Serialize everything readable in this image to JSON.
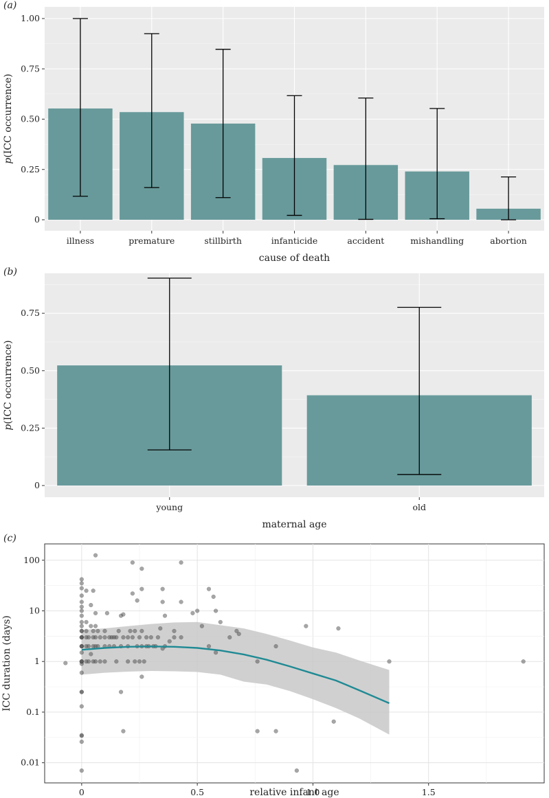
{
  "chart_data": [
    {
      "panel": "(a)",
      "panel_letter": "a",
      "type": "bar",
      "xlabel": "cause of death",
      "ylabel_italic": "p",
      "ylabel_rest": "(ICC occurrence)",
      "ylim": [
        0,
        1.0
      ],
      "yticks": [
        0,
        0.25,
        0.5,
        0.75,
        1.0
      ],
      "ytick_labels": [
        "0",
        "0.25",
        "0.50",
        "0.75",
        "1.00"
      ],
      "categories": [
        "illness",
        "premature",
        "stillbirth",
        "infanticide",
        "accident",
        "mishandling",
        "abortion"
      ],
      "values": [
        0.553,
        0.535,
        0.478,
        0.307,
        0.272,
        0.24,
        0.055
      ],
      "lower": [
        0.117,
        0.16,
        0.11,
        0.022,
        0.002,
        0.005,
        0.0
      ],
      "upper": [
        1.0,
        0.925,
        0.847,
        0.617,
        0.605,
        0.553,
        0.213
      ],
      "bar_color": "#689a9b"
    },
    {
      "panel": "(b)",
      "panel_letter": "b",
      "type": "bar",
      "xlabel": "maternal age",
      "ylabel_italic": "p",
      "ylabel_rest": "(ICC occurrence)",
      "ylim": [
        0,
        0.9
      ],
      "yticks": [
        0,
        0.25,
        0.5,
        0.75
      ],
      "ytick_labels": [
        "0",
        "0.25",
        "0.50",
        "0.75"
      ],
      "categories": [
        "young",
        "old"
      ],
      "values": [
        0.523,
        0.393
      ],
      "lower": [
        0.155,
        0.048
      ],
      "upper": [
        0.903,
        0.776
      ],
      "bar_color": "#689a9b"
    },
    {
      "panel": "(c)",
      "panel_letter": "c",
      "type": "scatter",
      "xlabel": "relative infant age",
      "ylabel": "ICC duration (days)",
      "y_scale": "log10",
      "xlim": [
        -0.16,
        2.0
      ],
      "ylim": [
        0.004,
        210
      ],
      "xticks": [
        0,
        0.5,
        1.0,
        1.5
      ],
      "xtick_labels": [
        "0",
        "0.5",
        "1.0",
        "1.5"
      ],
      "yticks": [
        0.01,
        0.1,
        1,
        10,
        100
      ],
      "ytick_labels": [
        "0.01",
        "0.1",
        "1",
        "10",
        "100"
      ],
      "points": [
        [
          0,
          0.007
        ],
        [
          0,
          0.026
        ],
        [
          0,
          0.034
        ],
        [
          0,
          0.035
        ],
        [
          0,
          0.13
        ],
        [
          0,
          0.25
        ],
        [
          0,
          0.25
        ],
        [
          0,
          0.6
        ],
        [
          0,
          0.9
        ],
        [
          0,
          1
        ],
        [
          0,
          1
        ],
        [
          0,
          1
        ],
        [
          0,
          1.5
        ],
        [
          0,
          2
        ],
        [
          0,
          2
        ],
        [
          0,
          2
        ],
        [
          0,
          3
        ],
        [
          0,
          3
        ],
        [
          0,
          3
        ],
        [
          0,
          4
        ],
        [
          0,
          4
        ],
        [
          0,
          5
        ],
        [
          0,
          6
        ],
        [
          0,
          8
        ],
        [
          0,
          10
        ],
        [
          0,
          12
        ],
        [
          0,
          15
        ],
        [
          0,
          20
        ],
        [
          0,
          28
        ],
        [
          0,
          35
        ],
        [
          0,
          42
        ],
        [
          0.02,
          1
        ],
        [
          0.02,
          2
        ],
        [
          0.02,
          3
        ],
        [
          0.02,
          4
        ],
        [
          0.02,
          6
        ],
        [
          0.02,
          25
        ],
        [
          0.03,
          1
        ],
        [
          0.03,
          2
        ],
        [
          0.03,
          3
        ],
        [
          0.04,
          1.4
        ],
        [
          0.04,
          5
        ],
        [
          0.04,
          13
        ],
        [
          0.05,
          1
        ],
        [
          0.05,
          2
        ],
        [
          0.05,
          3
        ],
        [
          0.05,
          4
        ],
        [
          0.05,
          25
        ],
        [
          0.06,
          1
        ],
        [
          0.06,
          2
        ],
        [
          0.06,
          3
        ],
        [
          0.06,
          5
        ],
        [
          0.06,
          9
        ],
        [
          0.07,
          2
        ],
        [
          0.07,
          4
        ],
        [
          0.08,
          1
        ],
        [
          0.08,
          3
        ],
        [
          0.1,
          1
        ],
        [
          0.1,
          2
        ],
        [
          0.1,
          3
        ],
        [
          0.1,
          4
        ],
        [
          0.11,
          9
        ],
        [
          0.12,
          2
        ],
        [
          0.12,
          3
        ],
        [
          0.13,
          3
        ],
        [
          0.14,
          2
        ],
        [
          0.14,
          3
        ],
        [
          0.15,
          1
        ],
        [
          0.15,
          3
        ],
        [
          0.16,
          4
        ],
        [
          0.17,
          2
        ],
        [
          0.17,
          8
        ],
        [
          0.18,
          3
        ],
        [
          0.18,
          8.5
        ],
        [
          0.2,
          1
        ],
        [
          0.2,
          2
        ],
        [
          0.2,
          3
        ],
        [
          0.21,
          4
        ],
        [
          0.22,
          3
        ],
        [
          0.23,
          1
        ],
        [
          0.23,
          4
        ],
        [
          0.24,
          2
        ],
        [
          0.25,
          1
        ],
        [
          0.25,
          3
        ],
        [
          0.26,
          2
        ],
        [
          0.26,
          4
        ],
        [
          0.27,
          1
        ],
        [
          0.28,
          2
        ],
        [
          0.28,
          3
        ],
        [
          0.29,
          2
        ],
        [
          0.3,
          3
        ],
        [
          0.31,
          2
        ],
        [
          0.32,
          2
        ],
        [
          0.33,
          3
        ],
        [
          0.34,
          4.5
        ],
        [
          0.35,
          1.8
        ],
        [
          0.36,
          2
        ],
        [
          0.38,
          2.5
        ],
        [
          0.4,
          3
        ],
        [
          0.4,
          4
        ],
        [
          0.22,
          22
        ],
        [
          0.24,
          16
        ],
        [
          0.26,
          27
        ],
        [
          0.35,
          27
        ],
        [
          0.35,
          15
        ],
        [
          0.36,
          8
        ],
        [
          0.43,
          15
        ],
        [
          0.43,
          3
        ],
        [
          0.5,
          10
        ],
        [
          0.48,
          9
        ],
        [
          0.52,
          5
        ],
        [
          0.55,
          2
        ],
        [
          0.55,
          27
        ],
        [
          0.57,
          19
        ],
        [
          0.58,
          1.5
        ],
        [
          0.58,
          10
        ],
        [
          0.6,
          6
        ],
        [
          0.64,
          3
        ],
        [
          0.67,
          4
        ],
        [
          0.68,
          3.5
        ],
        [
          0.76,
          1
        ],
        [
          0.84,
          2
        ],
        [
          0.97,
          5
        ],
        [
          1.11,
          4.5
        ],
        [
          1.33,
          1
        ],
        [
          -0.07,
          0.93
        ],
        [
          0.06,
          125
        ],
        [
          0.22,
          90
        ],
        [
          0.26,
          68
        ],
        [
          0.43,
          90
        ],
        [
          0.17,
          0.25
        ],
        [
          0.18,
          0.042
        ],
        [
          0.26,
          0.5
        ],
        [
          0.76,
          0.042
        ],
        [
          0.84,
          0.042
        ],
        [
          0.93,
          0.007
        ],
        [
          1.09,
          0.065
        ],
        [
          1.91,
          1
        ]
      ],
      "fit_x": [
        0,
        0.1,
        0.2,
        0.3,
        0.4,
        0.5,
        0.6,
        0.7,
        0.8,
        0.9,
        1.0,
        1.1,
        1.2,
        1.33
      ],
      "fit_y": [
        1.7,
        1.85,
        1.95,
        1.98,
        1.95,
        1.85,
        1.65,
        1.38,
        1.08,
        0.8,
        0.58,
        0.42,
        0.27,
        0.15
      ],
      "fit_lo": [
        0.55,
        0.6,
        0.63,
        0.65,
        0.64,
        0.62,
        0.55,
        0.4,
        0.35,
        0.26,
        0.18,
        0.12,
        0.075,
        0.036
      ],
      "fit_hi": [
        4.2,
        4.5,
        5.0,
        5.5,
        5.9,
        6.0,
        5.2,
        4.5,
        3.5,
        2.6,
        1.9,
        1.5,
        1.05,
        0.68
      ],
      "point_color": "#4d4d4d",
      "line_color": "#1f8a94",
      "band_color": "#c8c8c8"
    }
  ]
}
